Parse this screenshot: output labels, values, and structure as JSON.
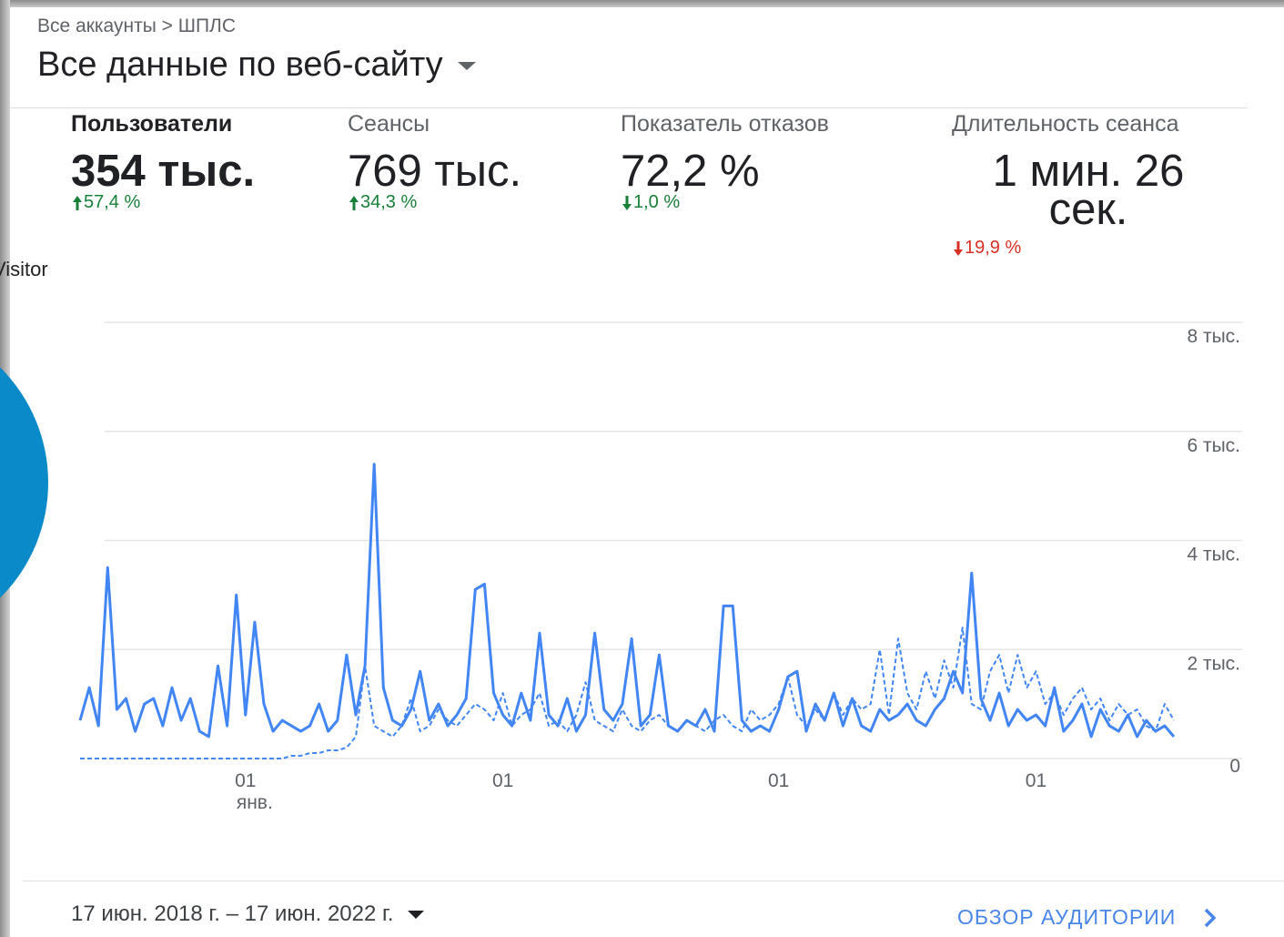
{
  "header": {
    "breadcrumb": "Все аккаунты > ШПЛС",
    "title": "Все данные по веб-сайту"
  },
  "overlay_text": "Visitor",
  "metrics": [
    {
      "label": "Пользователи",
      "value": "354 тыс.",
      "change": "57,4 %",
      "trend": "up",
      "color": "#188038",
      "selected": true
    },
    {
      "label": "Сеансы",
      "value": "769 тыс.",
      "change": "34,3 %",
      "trend": "up",
      "color": "#188038",
      "selected": false
    },
    {
      "label": "Показатель отказов",
      "value": "72,2 %",
      "change": "1,0 %",
      "trend": "down",
      "color": "#188038",
      "selected": false
    },
    {
      "label": "Длительность сеанса",
      "value": "1 мин. 26 сек.",
      "change": "19,9 %",
      "trend": "down",
      "color": "#d93025",
      "selected": false
    }
  ],
  "chart_data": {
    "type": "line",
    "categories": [
      null,
      null,
      null,
      null,
      null,
      null,
      null,
      null,
      null,
      null,
      null,
      null,
      null,
      null,
      null,
      null,
      null,
      null,
      "01",
      null,
      null,
      null,
      null,
      null,
      null,
      null,
      null,
      null,
      null,
      null,
      null,
      null,
      null,
      null,
      null,
      null,
      null,
      null,
      null,
      null,
      null,
      null,
      null,
      null,
      null,
      null,
      "01",
      null,
      null,
      null,
      null,
      null,
      null,
      null,
      null,
      null,
      null,
      null,
      null,
      null,
      null,
      null,
      null,
      null,
      null,
      null,
      null,
      null,
      null,
      null,
      null,
      null,
      null,
      null,
      null,
      null,
      "01",
      null,
      null,
      null,
      null,
      null,
      null,
      null,
      null,
      null,
      null,
      null,
      null,
      null,
      null,
      null,
      null,
      null,
      null,
      null,
      null,
      null,
      null,
      null,
      null,
      null,
      null,
      null,
      "01",
      null,
      null,
      null,
      null,
      null,
      null,
      null,
      null,
      null,
      null,
      null,
      null,
      null,
      null,
      null
    ],
    "x_sublabel": "янв.",
    "series": [
      {
        "color": "#4285f4",
        "dashed": false,
        "values": [
          700,
          1300,
          600,
          3500,
          900,
          1100,
          500,
          1000,
          1100,
          600,
          1300,
          700,
          1100,
          500,
          400,
          1700,
          600,
          3000,
          800,
          2500,
          1000,
          500,
          700,
          600,
          500,
          600,
          1000,
          500,
          700,
          1900,
          800,
          1700,
          5400,
          1300,
          700,
          600,
          900,
          1600,
          700,
          1000,
          600,
          800,
          1100,
          3100,
          3200,
          1200,
          800,
          600,
          1200,
          700,
          2300,
          800,
          600,
          1100,
          500,
          800,
          2300,
          900,
          700,
          1000,
          2200,
          600,
          800,
          1900,
          600,
          500,
          700,
          600,
          900,
          500,
          2800,
          2800,
          700,
          500,
          600,
          500,
          900,
          1500,
          1600,
          500,
          1000,
          700,
          1200,
          600,
          1100,
          600,
          500,
          900,
          700,
          800,
          1000,
          700,
          600,
          900,
          1100,
          1600,
          1200,
          3400,
          1100,
          700,
          1200,
          600,
          900,
          700,
          800,
          600,
          1300,
          500,
          700,
          1000,
          400,
          900,
          600,
          500,
          800,
          400,
          700,
          500,
          600,
          400
        ]
      },
      {
        "color": "#4285f4",
        "dashed": true,
        "values": [
          0,
          0,
          0,
          0,
          0,
          0,
          0,
          0,
          0,
          0,
          0,
          0,
          0,
          0,
          0,
          0,
          0,
          0,
          0,
          0,
          0,
          0,
          0,
          50,
          50,
          100,
          100,
          150,
          150,
          200,
          400,
          1700,
          600,
          500,
          400,
          600,
          1100,
          500,
          600,
          900,
          700,
          600,
          800,
          1000,
          900,
          700,
          1200,
          600,
          800,
          900,
          1200,
          600,
          700,
          500,
          800,
          1400,
          700,
          600,
          500,
          900,
          600,
          500,
          700,
          800,
          600,
          500,
          700,
          600,
          500,
          700,
          800,
          600,
          500,
          900,
          700,
          800,
          1000,
          1500,
          800,
          600,
          900,
          700,
          1200,
          800,
          1100,
          900,
          1000,
          2000,
          800,
          2200,
          1200,
          900,
          1600,
          1100,
          1800,
          1300,
          2400,
          1000,
          900,
          1600,
          1900,
          1200,
          1900,
          1300,
          1600,
          1000,
          1200,
          800,
          1100,
          1300,
          900,
          1100,
          700,
          1000,
          800,
          900,
          600,
          500,
          1000,
          700
        ]
      }
    ],
    "ylim": [
      0,
      8000
    ],
    "yticks": [
      0,
      {
        "value": 2000,
        "label": "2 тыс."
      },
      {
        "value": 4000,
        "label": "4 тыс."
      },
      {
        "value": 6000,
        "label": "6 тыс."
      },
      {
        "value": 8000,
        "label": "8 тыс."
      }
    ],
    "grid": true
  },
  "footer": {
    "date_range": "17 июн. 2018 г. – 17 июн. 2022 г.",
    "link": "ОБЗОР АУДИТОРИИ"
  }
}
